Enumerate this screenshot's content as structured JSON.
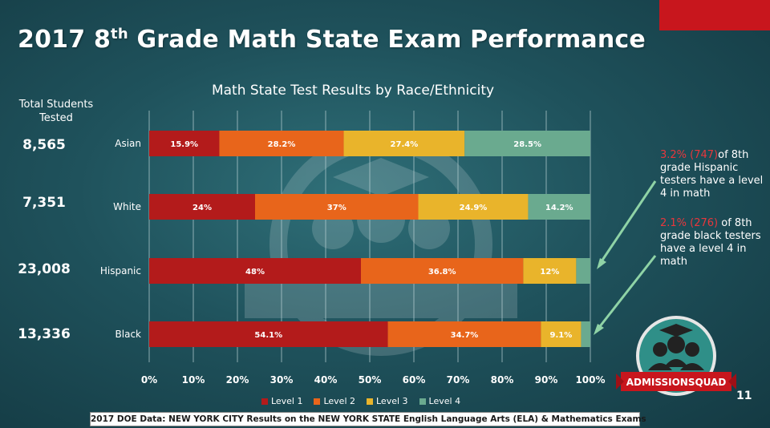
{
  "slide": {
    "title_main": "2017 8",
    "title_sup": "th",
    "title_rest": " Grade Math State Exam Performance",
    "page_number": "11",
    "footer": "2017 DOE Data: NEW YORK CITY Results on the NEW YORK STATE English Language Arts (ELA) & Mathematics Exams",
    "total_header": "Total Students Tested",
    "totals": [
      "8,565",
      "7,351",
      "23,008",
      "13,336"
    ],
    "callouts": [
      {
        "highlight": "3.2% (747)",
        "rest": "of 8th grade Hispanic testers have a level 4 in math"
      },
      {
        "highlight": "2.1% (276)",
        "rest": " of 8th grade  black testers have a level 4 in math"
      }
    ],
    "logo_text": "ADMISSIONSQUAD",
    "colors": {
      "accent_red": "#c8161d",
      "callout_red": "#e8373c",
      "callout_arrow": "#8fd3a6"
    }
  },
  "chart_data": {
    "type": "bar",
    "orientation": "horizontal",
    "stacked": true,
    "title": "Math State Test Results by Race/Ethnicity",
    "categories": [
      "Asian",
      "White",
      "Hispanic",
      "Black"
    ],
    "series": [
      {
        "name": "Level 1",
        "color": "#b31b1b",
        "values": [
          15.9,
          24,
          48,
          54.1
        ],
        "labels": [
          "15.9%",
          "24%",
          "48%",
          "54.1%"
        ]
      },
      {
        "name": "Level 2",
        "color": "#e8651b",
        "values": [
          28.2,
          37,
          36.8,
          34.7
        ],
        "labels": [
          "28.2%",
          "37%",
          "36.8%",
          "34.7%"
        ]
      },
      {
        "name": "Level 3",
        "color": "#e9b42b",
        "values": [
          27.4,
          24.9,
          12,
          9.1
        ],
        "labels": [
          "27.4%",
          "24.9%",
          "12%",
          "9.1%"
        ]
      },
      {
        "name": "Level 4",
        "color": "#6aaa8f",
        "values": [
          28.5,
          14.2,
          3.2,
          2.1
        ],
        "labels": [
          "28.5%",
          "14.2%",
          "",
          ""
        ]
      }
    ],
    "xlim": [
      0,
      100
    ],
    "xticks": [
      "0%",
      "10%",
      "20%",
      "30%",
      "40%",
      "50%",
      "60%",
      "70%",
      "80%",
      "90%",
      "100%"
    ],
    "grid": true,
    "legend": "bottom"
  }
}
